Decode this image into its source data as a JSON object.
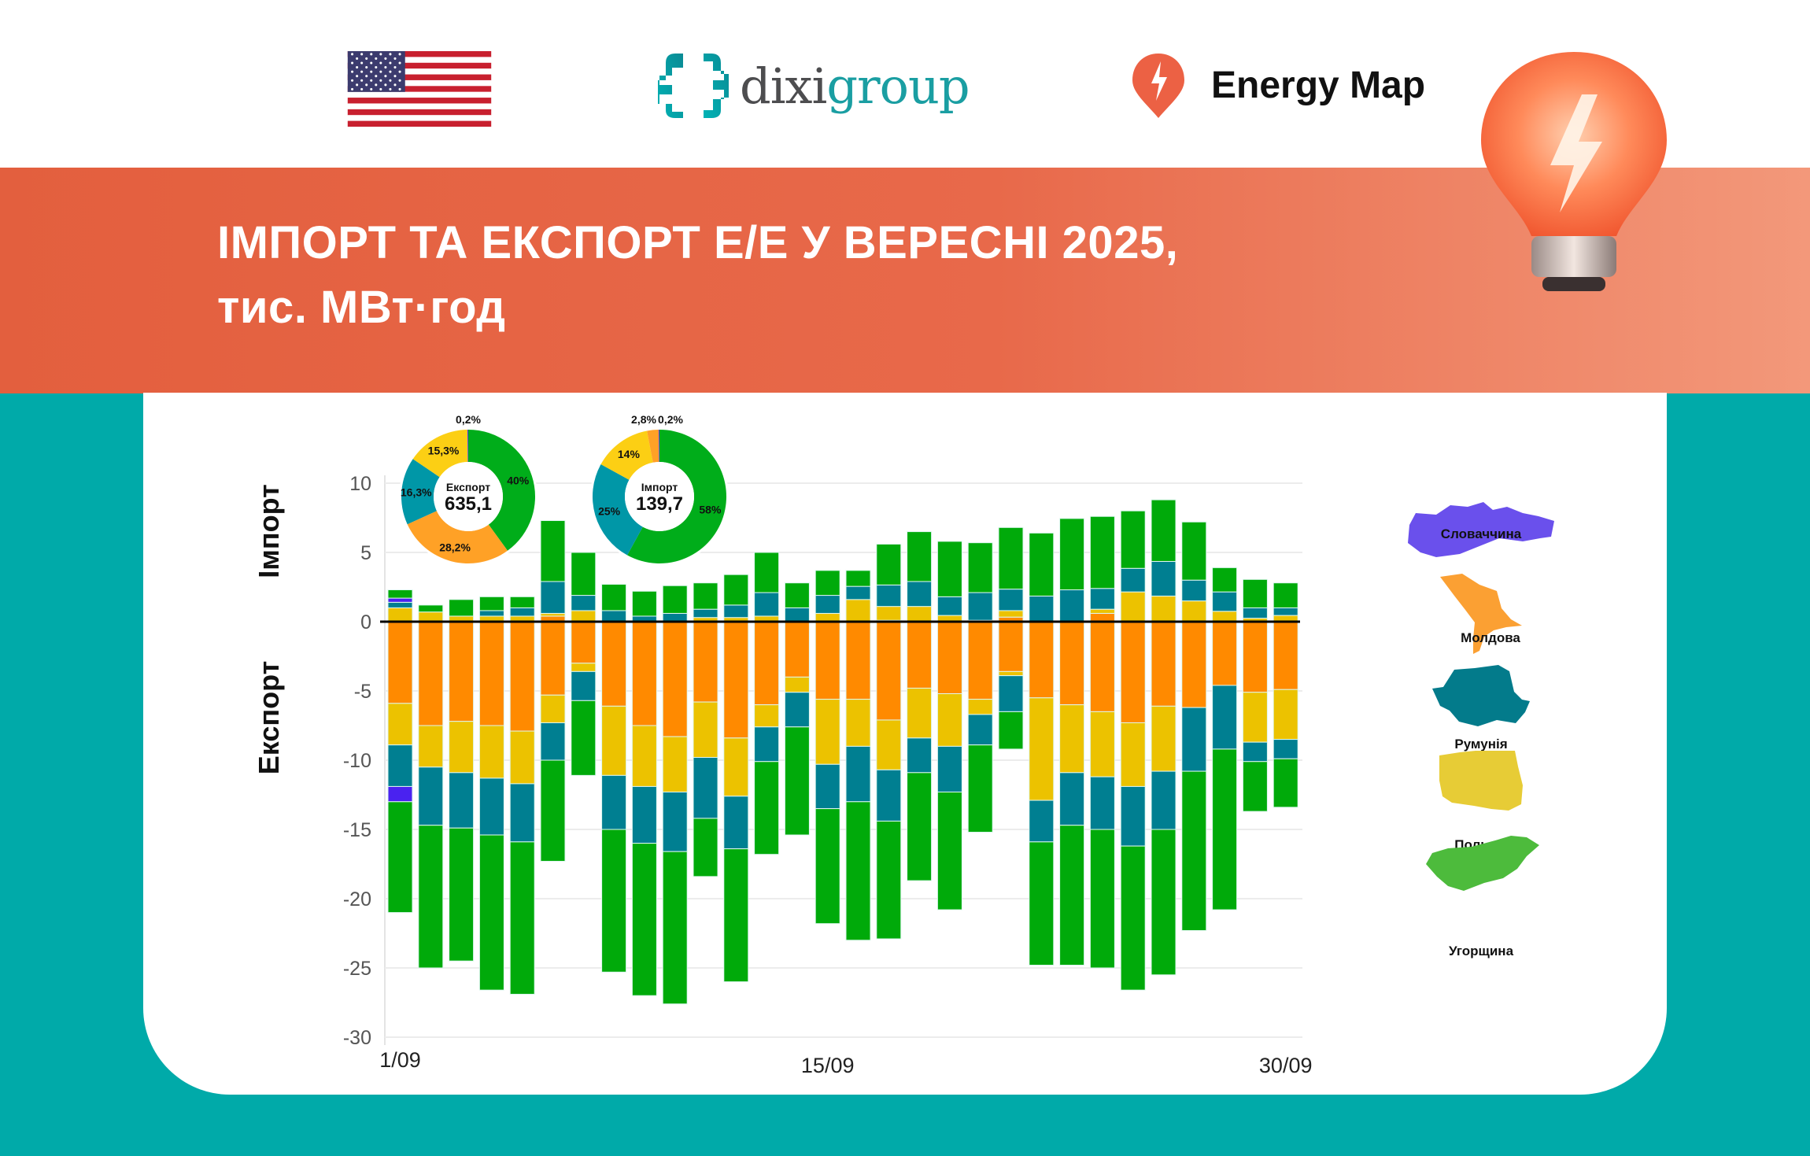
{
  "header": {
    "flag": "us-flag",
    "logo_text_part1": "dixi",
    "logo_text_part2": "group",
    "energy_map_label": "Energy Map",
    "title_line1": "ІМПОРТ ТА ЕКСПОРТ Е/Е У ВЕРЕСНІ 2025,",
    "title_line2": "тис. МВт·год"
  },
  "colors": {
    "hungary": "#00aa0a",
    "moldova": "#ff8a00",
    "poland": "#ecc200",
    "romania": "#007f91",
    "slovakia": "#4a22f0",
    "pie_hungary": "#00ad1a",
    "pie_moldova": "#ffa126",
    "pie_poland": "#fccf14",
    "pie_romania": "#0097a7",
    "pie_slovakia": "#5a2cf0",
    "banner": "#e8694a",
    "teal_bg": "#00aaa9"
  },
  "legend": {
    "slovakia": "Словаччина",
    "moldova": "Молдова",
    "romania": "Румунія",
    "poland": "Польща",
    "hungary": "Угорщина"
  },
  "chart_data": [
    {
      "type": "bar",
      "stacked": true,
      "title": "ІМПОРТ ТА ЕКСПОРТ Е/Е У ВЕРЕСНІ 2025, тис. МВт·год",
      "ylabel_import": "Імпорт",
      "ylabel_export": "Експорт",
      "ylim": [
        -30,
        10
      ],
      "yticks": [
        10,
        5,
        0,
        -5,
        -10,
        -15,
        -20,
        -25,
        -30
      ],
      "ytick_labels": [
        "10",
        "5",
        "0",
        "-5",
        "-10",
        "-15",
        "-20",
        "-25",
        "-30"
      ],
      "xtick_labels": [
        {
          "day": 1,
          "label": "1/09"
        },
        {
          "day": 15,
          "label": "15/09"
        },
        {
          "day": 30,
          "label": "30/09"
        }
      ],
      "grid": true,
      "stack_order": [
        "moldova",
        "poland",
        "romania",
        "slovakia",
        "hungary"
      ],
      "days": [
        1,
        2,
        3,
        4,
        5,
        6,
        7,
        8,
        9,
        10,
        11,
        12,
        13,
        14,
        15,
        16,
        17,
        18,
        19,
        20,
        21,
        22,
        23,
        24,
        25,
        26,
        27,
        28,
        29,
        30
      ],
      "import": [
        [
          0,
          1.0,
          0.4,
          0.3,
          0.6
        ],
        [
          0,
          0.7,
          0,
          0,
          0.5
        ],
        [
          0,
          0.4,
          0,
          0,
          1.2
        ],
        [
          0,
          0.4,
          0.4,
          0,
          1.0
        ],
        [
          0,
          0.4,
          0.6,
          0,
          0.8
        ],
        [
          0.4,
          0.2,
          2.3,
          0,
          4.4
        ],
        [
          0,
          0.8,
          1.1,
          0,
          3.1
        ],
        [
          0,
          0,
          0.8,
          0,
          1.9
        ],
        [
          0,
          0,
          0.4,
          0,
          1.8
        ],
        [
          0,
          0,
          0.6,
          0,
          2.0
        ],
        [
          0,
          0.3,
          0.6,
          0,
          1.9
        ],
        [
          0,
          0.3,
          0.9,
          0,
          2.2
        ],
        [
          0,
          0.4,
          1.7,
          0,
          2.9
        ],
        [
          0,
          0,
          1.0,
          0,
          1.8
        ],
        [
          0,
          0.6,
          1.3,
          0,
          1.8
        ],
        [
          0,
          1.6,
          0.95,
          0,
          1.15
        ],
        [
          0.1,
          1.0,
          1.55,
          0,
          2.95
        ],
        [
          0,
          1.1,
          1.8,
          0,
          3.6
        ],
        [
          0,
          0.45,
          1.35,
          0,
          4.0
        ],
        [
          0,
          0.1,
          2.0,
          0,
          3.6
        ],
        [
          0.33,
          0.47,
          1.55,
          0,
          4.45
        ],
        [
          0,
          0,
          1.85,
          0,
          4.55
        ],
        [
          0,
          0,
          2.3,
          0,
          5.15
        ],
        [
          0.6,
          0.3,
          1.5,
          0,
          5.2
        ],
        [
          0,
          2.15,
          1.7,
          0,
          4.15
        ],
        [
          0,
          1.85,
          2.5,
          0,
          4.45
        ],
        [
          0,
          1.5,
          1.5,
          0,
          4.2
        ],
        [
          0,
          0.75,
          1.4,
          0,
          1.75
        ],
        [
          0,
          0.25,
          0.75,
          0,
          2.05
        ],
        [
          0,
          0.45,
          0.55,
          0,
          1.8
        ]
      ],
      "export": [
        [
          5.9,
          3.0,
          3.0,
          1.1,
          8.0
        ],
        [
          7.5,
          3.0,
          4.2,
          0,
          10.3
        ],
        [
          7.2,
          3.7,
          4.0,
          0,
          9.6
        ],
        [
          7.5,
          3.8,
          4.1,
          0,
          11.2
        ],
        [
          7.9,
          3.8,
          4.2,
          0,
          11.0
        ],
        [
          5.3,
          2.0,
          2.7,
          0,
          7.3
        ],
        [
          3.0,
          0.6,
          2.1,
          0,
          5.4
        ],
        [
          6.1,
          5.0,
          3.9,
          0,
          10.3
        ],
        [
          7.5,
          4.4,
          4.1,
          0,
          11.0
        ],
        [
          8.3,
          4.0,
          4.3,
          0,
          11.0
        ],
        [
          5.8,
          4.0,
          4.4,
          0,
          4.2
        ],
        [
          8.4,
          4.2,
          3.8,
          0,
          9.6
        ],
        [
          6.0,
          1.6,
          2.5,
          0,
          6.7
        ],
        [
          4.0,
          1.1,
          2.5,
          0,
          7.8
        ],
        [
          5.6,
          4.7,
          3.2,
          0,
          8.3
        ],
        [
          5.6,
          3.4,
          4.0,
          0,
          10.0
        ],
        [
          7.1,
          3.6,
          3.7,
          0,
          8.5
        ],
        [
          4.8,
          3.6,
          2.5,
          0,
          7.8
        ],
        [
          5.2,
          3.8,
          3.3,
          0,
          8.5
        ],
        [
          5.6,
          1.1,
          2.2,
          0,
          6.3
        ],
        [
          3.6,
          0.3,
          2.6,
          0,
          2.7
        ],
        [
          5.5,
          7.4,
          3.0,
          0,
          8.9
        ],
        [
          6.0,
          4.9,
          3.8,
          0,
          10.1
        ],
        [
          6.5,
          4.7,
          3.8,
          0,
          10.0
        ],
        [
          7.3,
          4.6,
          4.3,
          0,
          10.4
        ],
        [
          6.1,
          4.7,
          4.2,
          0,
          10.5
        ],
        [
          6.2,
          0,
          4.6,
          0,
          11.5
        ],
        [
          4.6,
          0,
          4.6,
          0,
          11.6
        ],
        [
          5.1,
          3.6,
          1.4,
          0,
          3.6
        ],
        [
          4.9,
          3.6,
          1.4,
          0,
          3.5
        ]
      ]
    },
    {
      "type": "pie",
      "donut": true,
      "center_label": "Експорт",
      "center_value": "635,1",
      "slices": [
        {
          "country": "hungary",
          "value": 40,
          "label": "40%"
        },
        {
          "country": "moldova",
          "value": 28.2,
          "label": "28,2%"
        },
        {
          "country": "romania",
          "value": 16.3,
          "label": "16,3%"
        },
        {
          "country": "poland",
          "value": 15.3,
          "label": "15,3%"
        },
        {
          "country": "slovakia",
          "value": 0.2,
          "label": "0,2%"
        }
      ]
    },
    {
      "type": "pie",
      "donut": true,
      "center_label": "Імпорт",
      "center_value": "139,7",
      "slices": [
        {
          "country": "hungary",
          "value": 58,
          "label": "58%"
        },
        {
          "country": "romania",
          "value": 25,
          "label": "25%"
        },
        {
          "country": "poland",
          "value": 14,
          "label": "14%"
        },
        {
          "country": "moldova",
          "value": 2.8,
          "label": "2,8%"
        },
        {
          "country": "slovakia",
          "value": 0.2,
          "label": "0,2%"
        }
      ]
    }
  ]
}
